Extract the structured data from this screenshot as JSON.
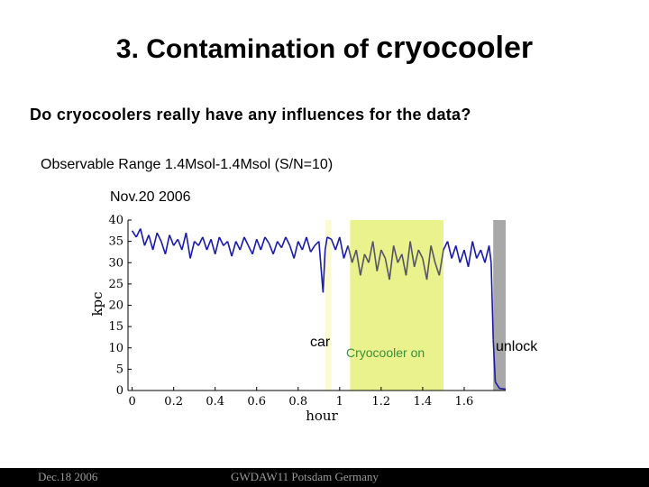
{
  "slide": {
    "title_prefix": "3.  Contamination of ",
    "title_emphasis": "cryocooler",
    "question": "Do cryocoolers really have any influences for the data?",
    "range_text": "Observable Range   1.4Msol-1.4Msol (S/N=10)",
    "date_label": "Nov.20 2006"
  },
  "footer": {
    "left": "Dec.18 2006",
    "center": "GWDAW11 Potsdam Germany"
  },
  "chart_data": {
    "type": "line",
    "xlabel": "hour",
    "ylabel": "kpc",
    "xlim": [
      -0.02,
      1.8
    ],
    "ylim": [
      0,
      40
    ],
    "xticks": [
      "0",
      "0.2",
      "0.4",
      "0.6",
      "0.8",
      "1",
      "1.2",
      "1.4",
      "1.6"
    ],
    "xtick_values": [
      0,
      0.2,
      0.4,
      0.6,
      0.8,
      1.0,
      1.2,
      1.4,
      1.6
    ],
    "yticks": [
      "0",
      "5",
      "10",
      "15",
      "20",
      "25",
      "30",
      "35",
      "40"
    ],
    "ytick_values": [
      0,
      5,
      10,
      15,
      20,
      25,
      30,
      35,
      40
    ],
    "colors": {
      "series": "#1a1aa8",
      "series_cryo": "#555566",
      "cryo_band": "#e9f28c",
      "car_band": "#fbfad0",
      "unlock_band": "#a8a8a8",
      "ann_cryo": "#3a8f3a"
    },
    "regions": [
      {
        "label": "car",
        "x": [
          0.93,
          0.96
        ]
      },
      {
        "label": "Cryocooler on",
        "x": [
          1.05,
          1.5
        ]
      },
      {
        "label": "unlock",
        "x": [
          1.74,
          1.8
        ]
      }
    ],
    "series": [
      {
        "x": [
          0.0,
          0.02,
          0.04,
          0.06,
          0.08,
          0.1,
          0.12,
          0.14,
          0.16,
          0.18,
          0.2,
          0.22,
          0.24,
          0.26,
          0.28,
          0.3,
          0.32,
          0.34,
          0.36,
          0.38,
          0.4,
          0.42,
          0.44,
          0.46,
          0.48,
          0.5,
          0.52,
          0.54,
          0.56,
          0.58,
          0.6,
          0.62,
          0.64,
          0.66,
          0.68,
          0.7,
          0.72,
          0.74,
          0.76,
          0.78,
          0.8,
          0.82,
          0.84,
          0.86,
          0.88,
          0.9,
          0.91,
          0.92,
          0.93,
          0.94,
          0.96,
          0.98,
          1.0,
          1.02,
          1.04,
          1.06,
          1.08,
          1.1,
          1.12,
          1.14,
          1.16,
          1.18,
          1.2,
          1.22,
          1.24,
          1.26,
          1.28,
          1.3,
          1.32,
          1.34,
          1.36,
          1.38,
          1.4,
          1.42,
          1.44,
          1.46,
          1.48,
          1.5,
          1.52,
          1.54,
          1.56,
          1.58,
          1.6,
          1.62,
          1.64,
          1.66,
          1.68,
          1.7,
          1.72,
          1.73,
          1.74,
          1.75,
          1.77,
          1.8
        ],
        "y": [
          37.5,
          36,
          38,
          34,
          36.5,
          33,
          37,
          35,
          32,
          36.5,
          34,
          35.5,
          33,
          37,
          31,
          35,
          34,
          36,
          33,
          35.5,
          32,
          36,
          34,
          35,
          31.5,
          35,
          33,
          36,
          34,
          32,
          35.5,
          33,
          36,
          34.5,
          32,
          35,
          33.5,
          36,
          34,
          31,
          35,
          33,
          36,
          32.5,
          34,
          35,
          29,
          23,
          33,
          36,
          35.5,
          33,
          36,
          31,
          34,
          30,
          33,
          27,
          32,
          30,
          35,
          28,
          33,
          31,
          26,
          34,
          30,
          32,
          27,
          35,
          29,
          33,
          31,
          26,
          34,
          30,
          27,
          33,
          35,
          31,
          34,
          30,
          33,
          29,
          35,
          31,
          33,
          30,
          34,
          30,
          12,
          2,
          0.5,
          0.3
        ]
      }
    ]
  }
}
